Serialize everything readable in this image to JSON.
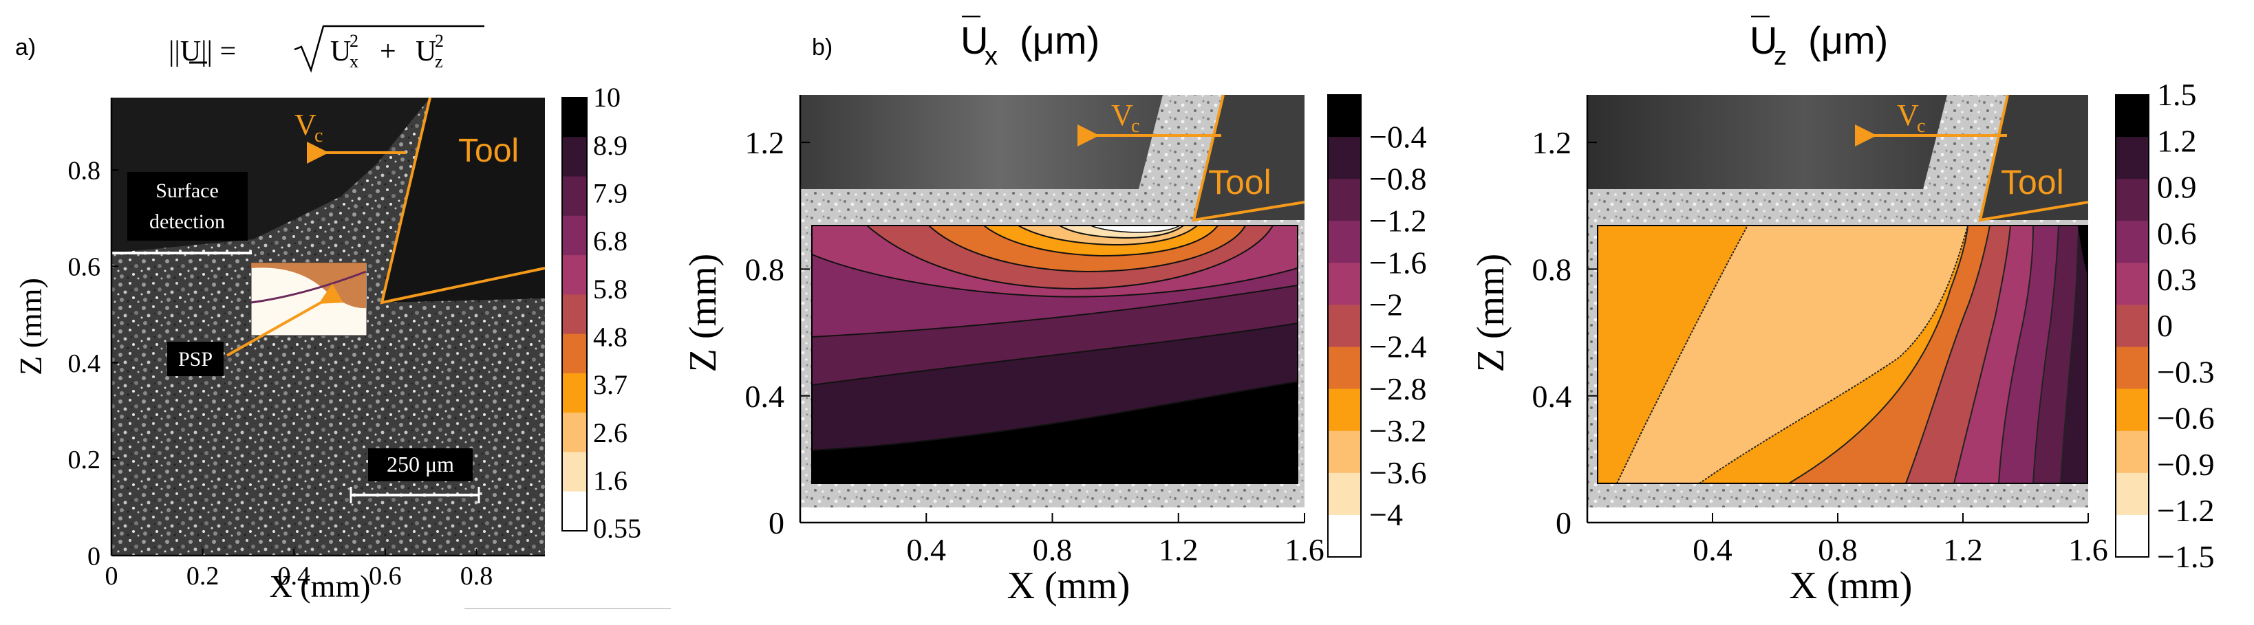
{
  "panel_labels": {
    "a": "a)",
    "b": "b)"
  },
  "colors": {
    "orange": "#f59a1b",
    "black": "#000000",
    "colormap": [
      "#ffffff",
      "#fde2b3",
      "#fcc070",
      "#fb9e0f",
      "#e2722a",
      "#b84c4e",
      "#a73a6c",
      "#842a62",
      "#5e1e4a",
      "#341431",
      "#000000"
    ]
  },
  "panel_a": {
    "formula": {
      "lhs": "||U|| = ",
      "radicand_1": "U",
      "sub_1": "x",
      "exp_1": "2",
      "plus": "+",
      "radicand_2": "U",
      "sub_2": "z",
      "exp_2": "2"
    },
    "annotations": {
      "vc": "V",
      "vc_sub": "c",
      "tool": "Tool",
      "surface_1": "Surface",
      "surface_2": "detection",
      "psp": "PSP",
      "scale": "250 μm"
    }
  },
  "panel_b": {
    "annotations": {
      "vc": "V",
      "vc_sub": "c",
      "tool": "Tool"
    }
  },
  "panel_c": {
    "annotations": {
      "vc": "V",
      "vc_sub": "c",
      "tool": "Tool"
    }
  },
  "chart_data": [
    {
      "id": "a",
      "type": "heatmap",
      "title": "||U|| = √(Ux² + Uz²)",
      "xlabel": "X (mm)",
      "ylabel": "Z (mm)",
      "xlim": [
        0,
        0.95
      ],
      "ylim": [
        0,
        0.95
      ],
      "xticks": [
        0,
        0.2,
        0.4,
        0.6,
        0.8
      ],
      "xtick_labels": [
        "0",
        "0.2",
        "0.4",
        "0.6",
        "0.8"
      ],
      "yticks": [
        0,
        0.2,
        0.4,
        0.6,
        0.8
      ],
      "ytick_labels": [
        "0",
        "0.2",
        "0.4",
        "0.6",
        "0.8"
      ],
      "colorbar": {
        "labels": [
          "10",
          "8.9",
          "7.9",
          "6.8",
          "5.8",
          "4.8",
          "3.7",
          "2.6",
          "1.6",
          "0.55"
        ]
      }
    },
    {
      "id": "b",
      "type": "heatmap",
      "title": "Ux (μm)",
      "title_main": "U",
      "title_sub": "x",
      "title_unit": "(μm)",
      "xlabel": "X (mm)",
      "ylabel": "Z (mm)",
      "xlim": [
        0,
        1.6
      ],
      "ylim": [
        0,
        1.35
      ],
      "xticks": [
        0.4,
        0.8,
        1.2,
        1.6
      ],
      "xtick_labels": [
        "0.4",
        "0.8",
        "1.2",
        "1.6"
      ],
      "yticks": [
        0,
        0.4,
        0.8,
        1.2
      ],
      "ytick_labels": [
        "0",
        "0.4",
        "0.8",
        "1.2"
      ],
      "colorbar": {
        "labels": [
          "−0.4",
          "−0.8",
          "−1.2",
          "−1.6",
          "−2",
          "−2.4",
          "−2.8",
          "−3.2",
          "−3.6",
          "−4"
        ]
      }
    },
    {
      "id": "c",
      "type": "heatmap",
      "title": "Uz (μm)",
      "title_main": "U",
      "title_sub": "z",
      "title_unit": "(μm)",
      "xlabel": "X (mm)",
      "ylabel": "Z (mm)",
      "xlim": [
        0,
        1.6
      ],
      "ylim": [
        0,
        1.35
      ],
      "xticks": [
        0.4,
        0.8,
        1.2,
        1.6
      ],
      "xtick_labels": [
        "0.4",
        "0.8",
        "1.2",
        "1.6"
      ],
      "yticks": [
        0,
        0.4,
        0.8,
        1.2
      ],
      "ytick_labels": [
        "0",
        "0.4",
        "0.8",
        "1.2"
      ],
      "colorbar": {
        "labels": [
          "1.5",
          "1.2",
          "0.9",
          "0.6",
          "0.3",
          "0",
          "−0.3",
          "−0.6",
          "−0.9",
          "−1.2",
          "−1.5"
        ]
      }
    }
  ]
}
